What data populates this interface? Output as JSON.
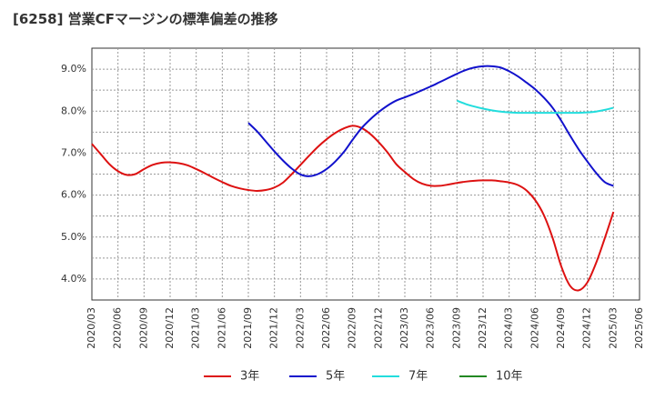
{
  "chart_data": {
    "type": "line",
    "title": "[6258]  営業CFマージンの標準偏差の推移",
    "xlabel": "",
    "ylabel": "",
    "ylim": [
      3.5,
      9.5
    ],
    "y_ticks": [
      4.0,
      5.0,
      6.0,
      7.0,
      8.0,
      9.0
    ],
    "y_tick_labels": [
      "4.0%",
      "5.0%",
      "6.0%",
      "7.0%",
      "8.0%",
      "9.0%"
    ],
    "x_start": "2020/03",
    "x_labels": [
      "2020/03",
      "2020/06",
      "2020/09",
      "2020/12",
      "2021/03",
      "2021/06",
      "2021/09",
      "2021/12",
      "2022/03",
      "2022/06",
      "2022/09",
      "2022/12",
      "2023/03",
      "2023/06",
      "2023/09",
      "2023/12",
      "2024/03",
      "2024/06",
      "2024/09",
      "2024/12",
      "2025/03",
      "2025/06"
    ],
    "grid": true,
    "legend_position": "bottom",
    "series": [
      {
        "name": "3年",
        "color": "#dd1111",
        "x": [
          "2020/03",
          "2020/04",
          "2020/05",
          "2020/06",
          "2020/07",
          "2020/08",
          "2020/09",
          "2020/10",
          "2020/11",
          "2020/12",
          "2021/01",
          "2021/02",
          "2021/03",
          "2021/04",
          "2021/05",
          "2021/06",
          "2021/07",
          "2021/08",
          "2021/09",
          "2021/10",
          "2021/11",
          "2021/12",
          "2022/01",
          "2022/02",
          "2022/03",
          "2022/04",
          "2022/05",
          "2022/06",
          "2022/07",
          "2022/08",
          "2022/09",
          "2022/10",
          "2022/11",
          "2022/12",
          "2023/01",
          "2023/02",
          "2023/03",
          "2023/04",
          "2023/05",
          "2023/06",
          "2023/07",
          "2023/08",
          "2023/09",
          "2023/10",
          "2023/11",
          "2023/12",
          "2024/01",
          "2024/02",
          "2024/03",
          "2024/04",
          "2024/05",
          "2024/06",
          "2024/07",
          "2024/08",
          "2024/09",
          "2024/10",
          "2024/11",
          "2024/12",
          "2025/01",
          "2025/02",
          "2025/03"
        ],
        "values": [
          7.22,
          6.98,
          6.74,
          6.57,
          6.48,
          6.5,
          6.62,
          6.72,
          6.77,
          6.78,
          6.76,
          6.71,
          6.62,
          6.52,
          6.41,
          6.31,
          6.22,
          6.16,
          6.12,
          6.1,
          6.12,
          6.18,
          6.3,
          6.5,
          6.72,
          6.94,
          7.15,
          7.33,
          7.48,
          7.59,
          7.65,
          7.6,
          7.46,
          7.26,
          7.02,
          6.74,
          6.55,
          6.38,
          6.27,
          6.22,
          6.22,
          6.25,
          6.29,
          6.32,
          6.34,
          6.35,
          6.35,
          6.33,
          6.3,
          6.24,
          6.11,
          5.88,
          5.52,
          4.98,
          4.3,
          3.84,
          3.73,
          3.92,
          4.38,
          4.97,
          5.6
        ]
      },
      {
        "name": "5年",
        "color": "#1111cc",
        "x": [
          "2021/09",
          "2021/10",
          "2021/11",
          "2021/12",
          "2022/01",
          "2022/02",
          "2022/03",
          "2022/04",
          "2022/05",
          "2022/06",
          "2022/07",
          "2022/08",
          "2022/09",
          "2022/10",
          "2022/11",
          "2022/12",
          "2023/01",
          "2023/02",
          "2023/03",
          "2023/04",
          "2023/05",
          "2023/06",
          "2023/07",
          "2023/08",
          "2023/09",
          "2023/10",
          "2023/11",
          "2023/12",
          "2024/01",
          "2024/02",
          "2024/03",
          "2024/04",
          "2024/05",
          "2024/06",
          "2024/07",
          "2024/08",
          "2024/09",
          "2024/10",
          "2024/11",
          "2024/12",
          "2025/01",
          "2025/02",
          "2025/03"
        ],
        "values": [
          7.72,
          7.52,
          7.28,
          7.04,
          6.82,
          6.63,
          6.49,
          6.45,
          6.5,
          6.62,
          6.8,
          7.03,
          7.32,
          7.59,
          7.8,
          7.98,
          8.13,
          8.25,
          8.33,
          8.41,
          8.5,
          8.59,
          8.69,
          8.79,
          8.89,
          8.98,
          9.04,
          9.07,
          9.07,
          9.04,
          8.95,
          8.83,
          8.68,
          8.52,
          8.32,
          8.08,
          7.77,
          7.42,
          7.09,
          6.8,
          6.53,
          6.31,
          6.22
        ]
      },
      {
        "name": "7年",
        "color": "#22dddd",
        "x": [
          "2023/09",
          "2023/10",
          "2023/11",
          "2023/12",
          "2024/01",
          "2024/02",
          "2024/03",
          "2024/04",
          "2024/05",
          "2024/06",
          "2024/07",
          "2024/08",
          "2024/09",
          "2024/10",
          "2024/11",
          "2024/12",
          "2025/01",
          "2025/02",
          "2025/03"
        ],
        "values": [
          8.25,
          8.17,
          8.11,
          8.06,
          8.02,
          7.99,
          7.97,
          7.96,
          7.96,
          7.96,
          7.96,
          7.96,
          7.96,
          7.96,
          7.96,
          7.97,
          7.99,
          8.03,
          8.08
        ]
      },
      {
        "name": "10年",
        "color": "#228822",
        "x": [],
        "values": []
      }
    ]
  }
}
